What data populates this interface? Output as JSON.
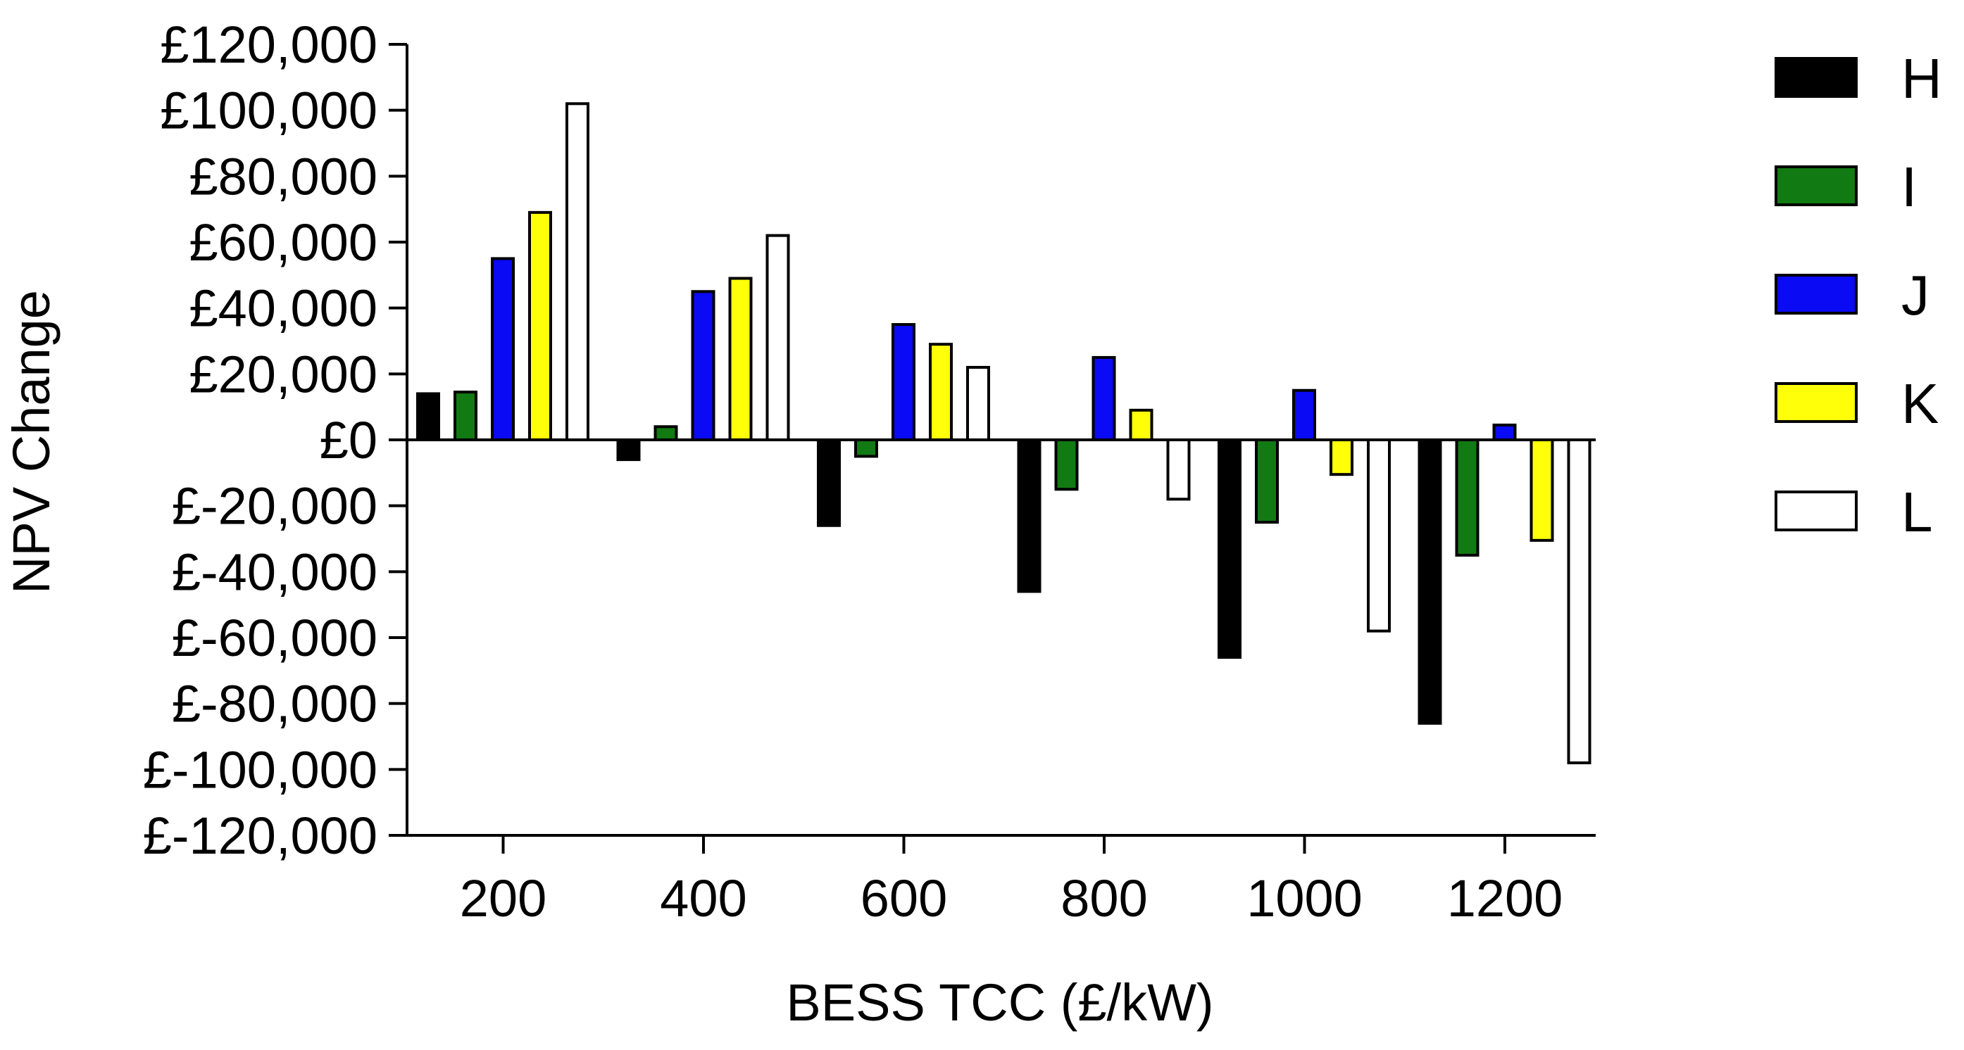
{
  "chart_data": {
    "type": "bar",
    "title": "",
    "xlabel": "BESS TCC (£/kW)",
    "ylabel": "NPV Change",
    "ylim": [
      -120000,
      120000
    ],
    "yticks": [
      120000,
      100000,
      80000,
      60000,
      40000,
      20000,
      0,
      -20000,
      -40000,
      -60000,
      -80000,
      -100000,
      -120000
    ],
    "ytick_labels": [
      "£120,000",
      "£100,000",
      "£80,000",
      "£60,000",
      "£40,000",
      "£20,000",
      "£0",
      "£-20,000",
      "£-40,000",
      "£-60,000",
      "£-80,000",
      "£-100,000",
      "£-120,000"
    ],
    "categories": [
      "200",
      "400",
      "600",
      "800",
      "1000",
      "1200"
    ],
    "grid": false,
    "legend_position": "right",
    "series": [
      {
        "name": "H",
        "color": "#000000",
        "values": [
          14000,
          -6000,
          -26000,
          -46000,
          -66000,
          -86000
        ]
      },
      {
        "name": "I",
        "color": "#127a12",
        "values": [
          14500,
          4000,
          -5000,
          -15000,
          -25000,
          -35000
        ]
      },
      {
        "name": "J",
        "color": "#0a0af5",
        "values": [
          55000,
          45000,
          35000,
          25000,
          15000,
          4500
        ]
      },
      {
        "name": "K",
        "color": "#ffff0a",
        "values": [
          69000,
          49000,
          29000,
          9000,
          -10500,
          -30500
        ]
      },
      {
        "name": "L",
        "color": "#ffffff",
        "values": [
          102000,
          62000,
          22000,
          -18000,
          -58000,
          -98000
        ]
      }
    ]
  }
}
